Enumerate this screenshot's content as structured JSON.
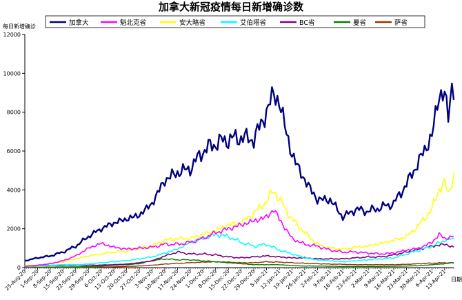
{
  "chart_data": {
    "type": "line",
    "title": "加拿大新冠疫情每日新增确诊数",
    "ylabel": "每日新增确诊",
    "xlabel": "日期",
    "ylim": [
      0,
      12000
    ],
    "yticks": [
      0,
      2000,
      4000,
      6000,
      8000,
      10000,
      12000
    ],
    "grid": false,
    "legend_position": "top",
    "x_tick_labels": [
      "25-Aug-20",
      "1-Sep-20",
      "8-Sep-20",
      "15-Sep-20",
      "22-Sep-20",
      "29-Sep-20",
      "6-Oct-20",
      "13-Oct-20",
      "20-Oct-20",
      "27-Oct-20",
      "3-Nov-20",
      "10-Nov-20",
      "17-Nov-20",
      "24-Nov-20",
      "1-Dec-20",
      "8-Dec-20",
      "15-Dec-20",
      "22-Dec-20",
      "29-Dec-20",
      "5-Jan-21",
      "12-Jan-21",
      "19-Jan-21",
      "26-Jan-21",
      "2-Feb-21",
      "9-Feb-21",
      "16-Feb-21",
      "23-Feb-21",
      "2-Mar-21",
      "9-Mar-21",
      "16-Mar-21",
      "23-Mar-21",
      "30-Mar-21",
      "6-Apr-21",
      "13-Apr-21"
    ],
    "x_start": "2020-08-25",
    "x_end": "2021-04-18",
    "series": [
      {
        "name": "加拿大",
        "color": "#000080",
        "width": 2.4,
        "points": [
          [
            "2020-08-25",
            350
          ],
          [
            "2020-09-01",
            500
          ],
          [
            "2020-09-08",
            600
          ],
          [
            "2020-09-15",
            800
          ],
          [
            "2020-09-22",
            1100
          ],
          [
            "2020-09-29",
            1600
          ],
          [
            "2020-10-06",
            2000
          ],
          [
            "2020-10-13",
            2300
          ],
          [
            "2020-10-20",
            2500
          ],
          [
            "2020-10-27",
            2700
          ],
          [
            "2020-11-03",
            3300
          ],
          [
            "2020-11-10",
            4500
          ],
          [
            "2020-11-17",
            4900
          ],
          [
            "2020-11-24",
            5100
          ],
          [
            "2020-12-01",
            6000
          ],
          [
            "2020-12-08",
            6400
          ],
          [
            "2020-12-15",
            6600
          ],
          [
            "2020-12-22",
            6700
          ],
          [
            "2020-12-29",
            6600
          ],
          [
            "2021-01-05",
            8000
          ],
          [
            "2021-01-09",
            9000
          ],
          [
            "2021-01-12",
            8500
          ],
          [
            "2021-01-19",
            5800
          ],
          [
            "2021-01-26",
            4500
          ],
          [
            "2021-02-02",
            3500
          ],
          [
            "2021-02-09",
            3500
          ],
          [
            "2021-02-16",
            2600
          ],
          [
            "2021-02-23",
            3000
          ],
          [
            "2021-03-02",
            2900
          ],
          [
            "2021-03-09",
            3100
          ],
          [
            "2021-03-16",
            3300
          ],
          [
            "2021-03-23",
            4300
          ],
          [
            "2021-03-30",
            5500
          ],
          [
            "2021-04-06",
            6800
          ],
          [
            "2021-04-10",
            8900
          ],
          [
            "2021-04-13",
            9000
          ],
          [
            "2021-04-15",
            7700
          ],
          [
            "2021-04-17",
            9300
          ],
          [
            "2021-04-18",
            9200
          ]
        ]
      },
      {
        "name": "魁北克省",
        "color": "#ff00ff",
        "width": 1.6,
        "points": [
          [
            "2020-08-25",
            70
          ],
          [
            "2020-09-01",
            120
          ],
          [
            "2020-09-08",
            200
          ],
          [
            "2020-09-15",
            350
          ],
          [
            "2020-09-22",
            600
          ],
          [
            "2020-09-29",
            1000
          ],
          [
            "2020-10-06",
            1250
          ],
          [
            "2020-10-13",
            1050
          ],
          [
            "2020-10-20",
            950
          ],
          [
            "2020-10-27",
            1000
          ],
          [
            "2020-11-03",
            1050
          ],
          [
            "2020-11-10",
            1200
          ],
          [
            "2020-11-17",
            1200
          ],
          [
            "2020-11-24",
            1300
          ],
          [
            "2020-12-01",
            1500
          ],
          [
            "2020-12-08",
            1800
          ],
          [
            "2020-12-15",
            2000
          ],
          [
            "2020-12-22",
            2200
          ],
          [
            "2020-12-29",
            2400
          ],
          [
            "2021-01-05",
            2600
          ],
          [
            "2021-01-09",
            3000
          ],
          [
            "2021-01-12",
            2500
          ],
          [
            "2021-01-19",
            1500
          ],
          [
            "2021-01-26",
            1200
          ],
          [
            "2021-02-02",
            1100
          ],
          [
            "2021-02-09",
            900
          ],
          [
            "2021-02-16",
            800
          ],
          [
            "2021-02-23",
            800
          ],
          [
            "2021-03-02",
            750
          ],
          [
            "2021-03-09",
            700
          ],
          [
            "2021-03-16",
            750
          ],
          [
            "2021-03-23",
            900
          ],
          [
            "2021-03-30",
            1000
          ],
          [
            "2021-04-06",
            1300
          ],
          [
            "2021-04-10",
            1700
          ],
          [
            "2021-04-13",
            1500
          ],
          [
            "2021-04-18",
            1600
          ]
        ]
      },
      {
        "name": "安大略省",
        "color": "#ffff00",
        "width": 1.6,
        "points": [
          [
            "2020-08-25",
            100
          ],
          [
            "2020-09-01",
            130
          ],
          [
            "2020-09-08",
            200
          ],
          [
            "2020-09-15",
            300
          ],
          [
            "2020-09-22",
            450
          ],
          [
            "2020-09-29",
            600
          ],
          [
            "2020-10-06",
            700
          ],
          [
            "2020-10-13",
            800
          ],
          [
            "2020-10-20",
            850
          ],
          [
            "2020-10-27",
            1000
          ],
          [
            "2020-11-03",
            1100
          ],
          [
            "2020-11-10",
            1400
          ],
          [
            "2020-11-17",
            1500
          ],
          [
            "2020-11-24",
            1500
          ],
          [
            "2020-12-01",
            1700
          ],
          [
            "2020-12-08",
            1900
          ],
          [
            "2020-12-15",
            2200
          ],
          [
            "2020-12-22",
            2300
          ],
          [
            "2020-12-29",
            2800
          ],
          [
            "2021-01-05",
            3400
          ],
          [
            "2021-01-09",
            4000
          ],
          [
            "2021-01-12",
            3500
          ],
          [
            "2021-01-19",
            2500
          ],
          [
            "2021-01-26",
            1800
          ],
          [
            "2021-02-02",
            1200
          ],
          [
            "2021-02-09",
            1000
          ],
          [
            "2021-02-16",
            950
          ],
          [
            "2021-02-23",
            1050
          ],
          [
            "2021-03-02",
            1100
          ],
          [
            "2021-03-09",
            1250
          ],
          [
            "2021-03-16",
            1400
          ],
          [
            "2021-03-23",
            1600
          ],
          [
            "2021-03-30",
            2200
          ],
          [
            "2021-04-06",
            3000
          ],
          [
            "2021-04-10",
            4100
          ],
          [
            "2021-04-13",
            4300
          ],
          [
            "2021-04-15",
            3800
          ],
          [
            "2021-04-18",
            4800
          ]
        ]
      },
      {
        "name": "艾伯塔省",
        "color": "#00ffff",
        "width": 1.6,
        "points": [
          [
            "2020-08-25",
            80
          ],
          [
            "2020-09-01",
            100
          ],
          [
            "2020-09-08",
            120
          ],
          [
            "2020-09-15",
            150
          ],
          [
            "2020-09-22",
            150
          ],
          [
            "2020-09-29",
            180
          ],
          [
            "2020-10-06",
            250
          ],
          [
            "2020-10-13",
            300
          ],
          [
            "2020-10-20",
            350
          ],
          [
            "2020-10-27",
            450
          ],
          [
            "2020-11-03",
            550
          ],
          [
            "2020-11-10",
            750
          ],
          [
            "2020-11-17",
            950
          ],
          [
            "2020-11-24",
            1300
          ],
          [
            "2020-12-01",
            1500
          ],
          [
            "2020-12-08",
            1700
          ],
          [
            "2020-12-15",
            1600
          ],
          [
            "2020-12-22",
            1300
          ],
          [
            "2020-12-29",
            1100
          ],
          [
            "2021-01-05",
            1200
          ],
          [
            "2021-01-12",
            900
          ],
          [
            "2021-01-19",
            700
          ],
          [
            "2021-01-26",
            500
          ],
          [
            "2021-02-02",
            400
          ],
          [
            "2021-02-09",
            350
          ],
          [
            "2021-02-16",
            300
          ],
          [
            "2021-02-23",
            350
          ],
          [
            "2021-03-02",
            400
          ],
          [
            "2021-03-09",
            450
          ],
          [
            "2021-03-16",
            500
          ],
          [
            "2021-03-23",
            700
          ],
          [
            "2021-03-30",
            900
          ],
          [
            "2021-04-06",
            1100
          ],
          [
            "2021-04-13",
            1400
          ],
          [
            "2021-04-18",
            1500
          ]
        ]
      },
      {
        "name": "BC省",
        "color": "#800080",
        "width": 1.6,
        "points": [
          [
            "2020-08-25",
            80
          ],
          [
            "2020-09-01",
            100
          ],
          [
            "2020-09-08",
            110
          ],
          [
            "2020-09-15",
            120
          ],
          [
            "2020-09-22",
            130
          ],
          [
            "2020-09-29",
            120
          ],
          [
            "2020-10-06",
            130
          ],
          [
            "2020-10-13",
            150
          ],
          [
            "2020-10-20",
            180
          ],
          [
            "2020-10-27",
            250
          ],
          [
            "2020-11-03",
            350
          ],
          [
            "2020-11-10",
            600
          ],
          [
            "2020-11-17",
            800
          ],
          [
            "2020-11-24",
            700
          ],
          [
            "2020-12-01",
            700
          ],
          [
            "2020-12-08",
            650
          ],
          [
            "2020-12-15",
            550
          ],
          [
            "2020-12-22",
            500
          ],
          [
            "2020-12-29",
            550
          ],
          [
            "2021-01-05",
            600
          ],
          [
            "2021-01-12",
            550
          ],
          [
            "2021-01-19",
            500
          ],
          [
            "2021-01-26",
            500
          ],
          [
            "2021-02-02",
            450
          ],
          [
            "2021-02-09",
            450
          ],
          [
            "2021-02-16",
            450
          ],
          [
            "2021-02-23",
            500
          ],
          [
            "2021-03-02",
            550
          ],
          [
            "2021-03-09",
            550
          ],
          [
            "2021-03-16",
            650
          ],
          [
            "2021-03-23",
            800
          ],
          [
            "2021-03-30",
            950
          ],
          [
            "2021-04-06",
            1100
          ],
          [
            "2021-04-13",
            1200
          ],
          [
            "2021-04-18",
            1050
          ]
        ]
      },
      {
        "name": "曼省",
        "color": "#008000",
        "width": 1.4,
        "points": [
          [
            "2020-08-25",
            20
          ],
          [
            "2020-09-01",
            25
          ],
          [
            "2020-09-08",
            30
          ],
          [
            "2020-09-15",
            35
          ],
          [
            "2020-09-22",
            40
          ],
          [
            "2020-09-29",
            50
          ],
          [
            "2020-10-06",
            80
          ],
          [
            "2020-10-13",
            120
          ],
          [
            "2020-10-20",
            150
          ],
          [
            "2020-10-27",
            200
          ],
          [
            "2020-11-03",
            350
          ],
          [
            "2020-11-10",
            450
          ],
          [
            "2020-11-17",
            400
          ],
          [
            "2020-11-24",
            400
          ],
          [
            "2020-12-01",
            350
          ],
          [
            "2020-12-08",
            300
          ],
          [
            "2020-12-15",
            250
          ],
          [
            "2020-12-22",
            200
          ],
          [
            "2020-12-29",
            150
          ],
          [
            "2021-01-05",
            150
          ],
          [
            "2021-01-12",
            150
          ],
          [
            "2021-01-19",
            100
          ],
          [
            "2021-01-26",
            80
          ],
          [
            "2021-02-02",
            80
          ],
          [
            "2021-02-09",
            70
          ],
          [
            "2021-02-16",
            60
          ],
          [
            "2021-02-23",
            60
          ],
          [
            "2021-03-02",
            60
          ],
          [
            "2021-03-09",
            60
          ],
          [
            "2021-03-16",
            70
          ],
          [
            "2021-03-23",
            80
          ],
          [
            "2021-03-30",
            100
          ],
          [
            "2021-04-06",
            150
          ],
          [
            "2021-04-13",
            200
          ],
          [
            "2021-04-18",
            250
          ]
        ]
      },
      {
        "name": "萨省",
        "color": "#993300",
        "width": 1.4,
        "points": [
          [
            "2020-08-25",
            10
          ],
          [
            "2020-09-01",
            15
          ],
          [
            "2020-09-08",
            15
          ],
          [
            "2020-09-15",
            20
          ],
          [
            "2020-09-22",
            20
          ],
          [
            "2020-09-29",
            25
          ],
          [
            "2020-10-06",
            30
          ],
          [
            "2020-10-13",
            40
          ],
          [
            "2020-10-20",
            60
          ],
          [
            "2020-10-27",
            80
          ],
          [
            "2020-11-03",
            120
          ],
          [
            "2020-11-10",
            180
          ],
          [
            "2020-11-17",
            220
          ],
          [
            "2020-11-24",
            250
          ],
          [
            "2020-12-01",
            280
          ],
          [
            "2020-12-08",
            300
          ],
          [
            "2020-12-15",
            280
          ],
          [
            "2020-12-22",
            250
          ],
          [
            "2020-12-29",
            250
          ],
          [
            "2021-01-05",
            300
          ],
          [
            "2021-01-12",
            280
          ],
          [
            "2021-01-19",
            250
          ],
          [
            "2021-01-26",
            220
          ],
          [
            "2021-02-02",
            200
          ],
          [
            "2021-02-09",
            180
          ],
          [
            "2021-02-16",
            170
          ],
          [
            "2021-02-23",
            150
          ],
          [
            "2021-03-02",
            150
          ],
          [
            "2021-03-09",
            150
          ],
          [
            "2021-03-16",
            150
          ],
          [
            "2021-03-23",
            170
          ],
          [
            "2021-03-30",
            200
          ],
          [
            "2021-04-06",
            230
          ],
          [
            "2021-04-13",
            250
          ],
          [
            "2021-04-18",
            250
          ]
        ]
      }
    ]
  }
}
